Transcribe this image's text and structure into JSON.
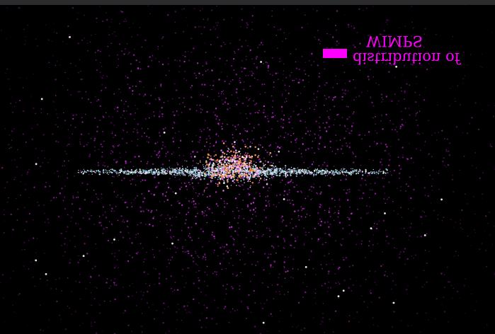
{
  "image": {
    "subject": "galaxy",
    "colors": {
      "background": "#000000",
      "top_strip": "#2b2b2d",
      "halo": "#b020c0",
      "disk": "#c8eef8",
      "core": "#ff8040",
      "legend": "#ff00ff"
    }
  },
  "legend": {
    "label_line_1": "distribution of",
    "label_line_2": "WIMPS",
    "swatch_color": "#ff00ff"
  }
}
